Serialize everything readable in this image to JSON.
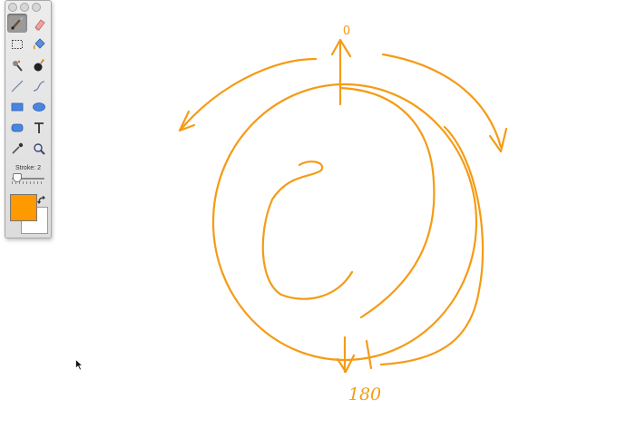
{
  "palette": {
    "stroke_label": "Stroke: 2",
    "fg_color": "#ff9900",
    "bg_color": "#ffffff",
    "tools": [
      {
        "name": "brush-tool",
        "icon": "brush-icon",
        "active": true
      },
      {
        "name": "eraser-tool",
        "icon": "eraser-icon",
        "active": false
      },
      {
        "name": "select-tool",
        "icon": "marquee-icon",
        "active": false
      },
      {
        "name": "fill-tool",
        "icon": "paint-bucket-icon",
        "active": false
      },
      {
        "name": "stamp-tool",
        "icon": "stamp-icon",
        "active": false
      },
      {
        "name": "bomb-tool",
        "icon": "bomb-icon",
        "active": false
      },
      {
        "name": "line-tool",
        "icon": "line-icon",
        "active": false
      },
      {
        "name": "curve-tool",
        "icon": "curve-icon",
        "active": false
      },
      {
        "name": "rectangle-tool",
        "icon": "rectangle-icon",
        "active": false
      },
      {
        "name": "ellipse-tool",
        "icon": "ellipse-icon",
        "active": false
      },
      {
        "name": "rounded-rect-tool",
        "icon": "rounded-rect-icon",
        "active": false
      },
      {
        "name": "text-tool",
        "icon": "text-icon",
        "active": false
      },
      {
        "name": "eyedropper-tool",
        "icon": "eyedropper-icon",
        "active": false
      },
      {
        "name": "zoom-tool",
        "icon": "magnifier-icon",
        "active": false
      }
    ]
  },
  "canvas": {
    "ink_color": "#f59b16",
    "label_top": "0",
    "label_bottom": "180"
  }
}
